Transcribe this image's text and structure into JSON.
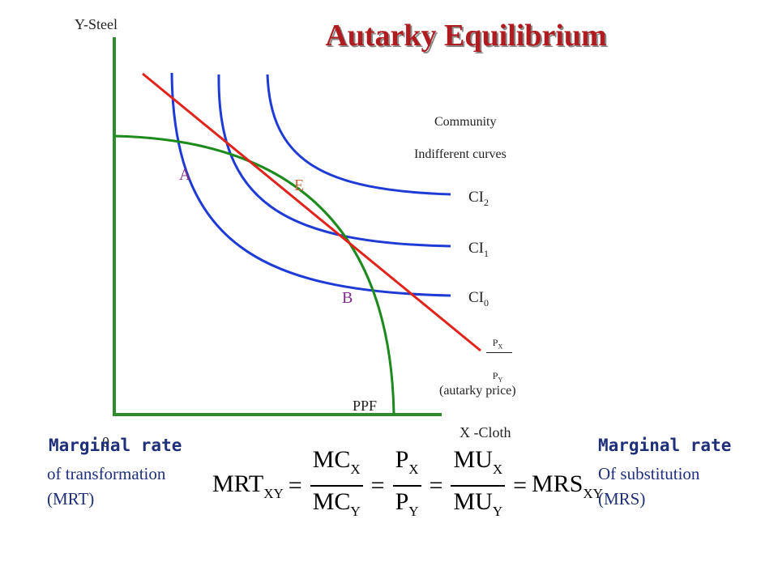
{
  "title": "Autarky Equilibrium",
  "axes": {
    "y_label": "Y-Steel",
    "x_label": "X -Cloth",
    "origin": "0"
  },
  "legend": {
    "line1": "Community",
    "line2": "Indifferent curves"
  },
  "curve_labels": {
    "ci2": {
      "base": "CI",
      "sub": "2"
    },
    "ci1": {
      "base": "CI",
      "sub": "1"
    },
    "ci0": {
      "base": "CI",
      "sub": "0"
    },
    "ppf": "PPF"
  },
  "points": {
    "a": "A",
    "e": "E",
    "b": "B"
  },
  "price_ratio": {
    "num_base": "P",
    "num_sub": "X",
    "den_base": "P",
    "den_sub": "Y",
    "note": "(autarky price)"
  },
  "left_note": {
    "heading": "Marginal rate",
    "line1": "of transformation",
    "line2": "(MRT)"
  },
  "right_note": {
    "heading": "Marginal rate",
    "line1": "Of substitution",
    "line2": "(MRS)"
  },
  "formula": {
    "lhs": "MRT",
    "lhs_sub": "XY",
    "f1_num": "MC",
    "f1_num_sub": "X",
    "f1_den": "MC",
    "f1_den_sub": "Y",
    "f2_num": "P",
    "f2_num_sub": "X",
    "f2_den": "P",
    "f2_den_sub": "Y",
    "f3_num": "MU",
    "f3_num_sub": "X",
    "f3_den": "MU",
    "f3_den_sub": "Y",
    "rhs": "MRS",
    "rhs_sub": "XY",
    "eq": "="
  },
  "colors": {
    "axes": "#2e8b2e",
    "indifference_curves": "#1f3bd6",
    "ppf": "#1d8a1d",
    "price_line": "#e0241b",
    "title": "#b01b20",
    "side_text": "#1f2f7a"
  }
}
